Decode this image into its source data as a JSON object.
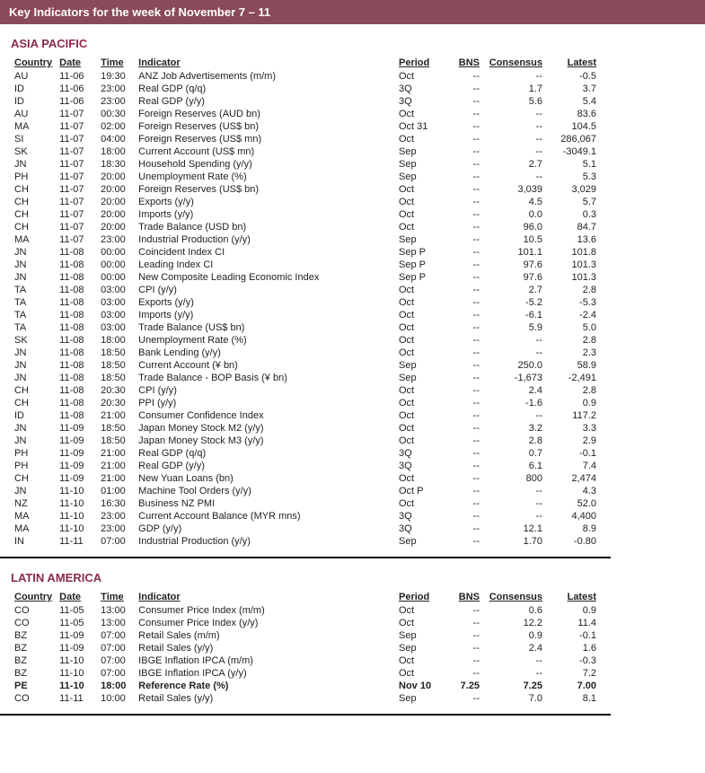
{
  "header": {
    "title": "Key Indicators for the week of November 7 – 11"
  },
  "columns": {
    "country": "Country",
    "date": "Date",
    "time": "Time",
    "indicator": "Indicator",
    "period": "Period",
    "bns": "BNS",
    "consensus": "Consensus",
    "latest": "Latest"
  },
  "sections": [
    {
      "title": "ASIA PACIFIC",
      "rows": [
        {
          "country": "AU",
          "date": "11-06",
          "time": "19:30",
          "indicator": "ANZ Job Advertisements  (m/m)",
          "period": "Oct",
          "bns": "--",
          "consensus": "--",
          "latest": "-0.5"
        },
        {
          "country": "ID",
          "date": "11-06",
          "time": "23:00",
          "indicator": "Real GDP (q/q)",
          "period": "3Q",
          "bns": "--",
          "consensus": "1.7",
          "latest": "3.7"
        },
        {
          "country": "ID",
          "date": "11-06",
          "time": "23:00",
          "indicator": "Real GDP (y/y)",
          "period": "3Q",
          "bns": "--",
          "consensus": "5.6",
          "latest": "5.4"
        },
        {
          "country": "AU",
          "date": "11-07",
          "time": "00:30",
          "indicator": "Foreign Reserves (AUD bn)",
          "period": "Oct",
          "bns": "--",
          "consensus": "--",
          "latest": "83.6"
        },
        {
          "country": "MA",
          "date": "11-07",
          "time": "02:00",
          "indicator": "Foreign Reserves (US$ bn)",
          "period": "Oct 31",
          "bns": "--",
          "consensus": "--",
          "latest": "104.5"
        },
        {
          "country": "SI",
          "date": "11-07",
          "time": "04:00",
          "indicator": "Foreign Reserves (US$ mn)",
          "period": "Oct",
          "bns": "--",
          "consensus": "--",
          "latest": "286,067"
        },
        {
          "country": "SK",
          "date": "11-07",
          "time": "18:00",
          "indicator": "Current Account (US$ mn)",
          "period": "Sep",
          "bns": "--",
          "consensus": "--",
          "latest": "-3049.1"
        },
        {
          "country": "JN",
          "date": "11-07",
          "time": "18:30",
          "indicator": "Household Spending (y/y)",
          "period": "Sep",
          "bns": "--",
          "consensus": "2.7",
          "latest": "5.1"
        },
        {
          "country": "PH",
          "date": "11-07",
          "time": "20:00",
          "indicator": "Unemployment Rate (%)",
          "period": "Sep",
          "bns": "--",
          "consensus": "--",
          "latest": "5.3"
        },
        {
          "country": "CH",
          "date": "11-07",
          "time": "20:00",
          "indicator": "Foreign Reserves (US$ bn)",
          "period": "Oct",
          "bns": "--",
          "consensus": "3,039",
          "latest": "3,029"
        },
        {
          "country": "CH",
          "date": "11-07",
          "time": "20:00",
          "indicator": "Exports (y/y)",
          "period": "Oct",
          "bns": "--",
          "consensus": "4.5",
          "latest": "5.7"
        },
        {
          "country": "CH",
          "date": "11-07",
          "time": "20:00",
          "indicator": "Imports (y/y)",
          "period": "Oct",
          "bns": "--",
          "consensus": "0.0",
          "latest": "0.3"
        },
        {
          "country": "CH",
          "date": "11-07",
          "time": "20:00",
          "indicator": "Trade Balance (USD bn)",
          "period": "Oct",
          "bns": "--",
          "consensus": "96.0",
          "latest": "84.7"
        },
        {
          "country": "MA",
          "date": "11-07",
          "time": "23:00",
          "indicator": "Industrial Production (y/y)",
          "period": "Sep",
          "bns": "--",
          "consensus": "10.5",
          "latest": "13.6"
        },
        {
          "country": "JN",
          "date": "11-08",
          "time": "00:00",
          "indicator": "Coincident Index CI",
          "period": "Sep P",
          "bns": "--",
          "consensus": "101.1",
          "latest": "101.8"
        },
        {
          "country": "JN",
          "date": "11-08",
          "time": "00:00",
          "indicator": "Leading Index CI",
          "period": "Sep P",
          "bns": "--",
          "consensus": "97.6",
          "latest": "101.3"
        },
        {
          "country": "JN",
          "date": "11-08",
          "time": "00:00",
          "indicator": "New Composite Leading Economic Index",
          "period": "Sep P",
          "bns": "--",
          "consensus": "97.6",
          "latest": "101.3"
        },
        {
          "country": "TA",
          "date": "11-08",
          "time": "03:00",
          "indicator": "CPI (y/y)",
          "period": "Oct",
          "bns": "--",
          "consensus": "2.7",
          "latest": "2.8"
        },
        {
          "country": "TA",
          "date": "11-08",
          "time": "03:00",
          "indicator": "Exports (y/y)",
          "period": "Oct",
          "bns": "--",
          "consensus": "-5.2",
          "latest": "-5.3"
        },
        {
          "country": "TA",
          "date": "11-08",
          "time": "03:00",
          "indicator": "Imports (y/y)",
          "period": "Oct",
          "bns": "--",
          "consensus": "-6.1",
          "latest": "-2.4"
        },
        {
          "country": "TA",
          "date": "11-08",
          "time": "03:00",
          "indicator": "Trade Balance (US$ bn)",
          "period": "Oct",
          "bns": "--",
          "consensus": "5.9",
          "latest": "5.0"
        },
        {
          "country": "SK",
          "date": "11-08",
          "time": "18:00",
          "indicator": "Unemployment Rate (%)",
          "period": "Oct",
          "bns": "--",
          "consensus": "--",
          "latest": "2.8"
        },
        {
          "country": "JN",
          "date": "11-08",
          "time": "18:50",
          "indicator": "Bank Lending (y/y)",
          "period": "Oct",
          "bns": "--",
          "consensus": "--",
          "latest": "2.3"
        },
        {
          "country": "JN",
          "date": "11-08",
          "time": "18:50",
          "indicator": "Current Account (¥ bn)",
          "period": "Sep",
          "bns": "--",
          "consensus": "250.0",
          "latest": "58.9"
        },
        {
          "country": "JN",
          "date": "11-08",
          "time": "18:50",
          "indicator": "Trade Balance - BOP Basis (¥ bn)",
          "period": "Sep",
          "bns": "--",
          "consensus": "-1,673",
          "latest": "-2,491"
        },
        {
          "country": "CH",
          "date": "11-08",
          "time": "20:30",
          "indicator": "CPI (y/y)",
          "period": "Oct",
          "bns": "--",
          "consensus": "2.4",
          "latest": "2.8"
        },
        {
          "country": "CH",
          "date": "11-08",
          "time": "20:30",
          "indicator": "PPI (y/y)",
          "period": "Oct",
          "bns": "--",
          "consensus": "-1.6",
          "latest": "0.9"
        },
        {
          "country": "ID",
          "date": "11-08",
          "time": "21:00",
          "indicator": "Consumer Confidence Index",
          "period": "Oct",
          "bns": "--",
          "consensus": "--",
          "latest": "117.2"
        },
        {
          "country": "JN",
          "date": "11-09",
          "time": "18:50",
          "indicator": "Japan Money Stock M2 (y/y)",
          "period": "Oct",
          "bns": "--",
          "consensus": "3.2",
          "latest": "3.3"
        },
        {
          "country": "JN",
          "date": "11-09",
          "time": "18:50",
          "indicator": "Japan Money Stock M3 (y/y)",
          "period": "Oct",
          "bns": "--",
          "consensus": "2.8",
          "latest": "2.9"
        },
        {
          "country": "PH",
          "date": "11-09",
          "time": "21:00",
          "indicator": "Real GDP (q/q)",
          "period": "3Q",
          "bns": "--",
          "consensus": "0.7",
          "latest": "-0.1"
        },
        {
          "country": "PH",
          "date": "11-09",
          "time": "21:00",
          "indicator": "Real GDP (y/y)",
          "period": "3Q",
          "bns": "--",
          "consensus": "6.1",
          "latest": "7.4"
        },
        {
          "country": "CH",
          "date": "11-09",
          "time": "21:00",
          "indicator": "New Yuan Loans (bn)",
          "period": "Oct",
          "bns": "--",
          "consensus": "800",
          "latest": "2,474"
        },
        {
          "country": "JN",
          "date": "11-10",
          "time": "01:00",
          "indicator": "Machine Tool Orders (y/y)",
          "period": "Oct P",
          "bns": "--",
          "consensus": "--",
          "latest": "4.3"
        },
        {
          "country": "NZ",
          "date": "11-10",
          "time": "16:30",
          "indicator": "Business NZ PMI",
          "period": "Oct",
          "bns": "--",
          "consensus": "--",
          "latest": "52.0"
        },
        {
          "country": "MA",
          "date": "11-10",
          "time": "23:00",
          "indicator": "Current Account Balance (MYR mns)",
          "period": "3Q",
          "bns": "--",
          "consensus": "--",
          "latest": "4,400"
        },
        {
          "country": "MA",
          "date": "11-10",
          "time": "23:00",
          "indicator": "GDP (y/y)",
          "period": "3Q",
          "bns": "--",
          "consensus": "12.1",
          "latest": "8.9"
        },
        {
          "country": "IN",
          "date": "11-11",
          "time": "07:00",
          "indicator": "Industrial Production (y/y)",
          "period": "Sep",
          "bns": "--",
          "consensus": "1.70",
          "latest": "-0.80"
        }
      ]
    },
    {
      "title": "LATIN AMERICA",
      "rows": [
        {
          "country": "CO",
          "date": "11-05",
          "time": "13:00",
          "indicator": "Consumer Price Index (m/m)",
          "period": "Oct",
          "bns": "--",
          "consensus": "0.6",
          "latest": "0.9"
        },
        {
          "country": "CO",
          "date": "11-05",
          "time": "13:00",
          "indicator": "Consumer Price Index (y/y)",
          "period": "Oct",
          "bns": "--",
          "consensus": "12.2",
          "latest": "11.4"
        },
        {
          "country": "BZ",
          "date": "11-09",
          "time": "07:00",
          "indicator": "Retail Sales (m/m)",
          "period": "Sep",
          "bns": "--",
          "consensus": "0.9",
          "latest": "-0.1"
        },
        {
          "country": "BZ",
          "date": "11-09",
          "time": "07:00",
          "indicator": "Retail Sales (y/y)",
          "period": "Sep",
          "bns": "--",
          "consensus": "2.4",
          "latest": "1.6"
        },
        {
          "country": "BZ",
          "date": "11-10",
          "time": "07:00",
          "indicator": "IBGE Inflation IPCA (m/m)",
          "period": "Oct",
          "bns": "--",
          "consensus": "--",
          "latest": "-0.3"
        },
        {
          "country": "BZ",
          "date": "11-10",
          "time": "07:00",
          "indicator": "IBGE Inflation IPCA (y/y)",
          "period": "Oct",
          "bns": "--",
          "consensus": "--",
          "latest": "7.2"
        },
        {
          "country": "PE",
          "date": "11-10",
          "time": "18:00",
          "indicator": "Reference Rate (%)",
          "period": "Nov 10",
          "bns": "7.25",
          "consensus": "7.25",
          "latest": "7.00",
          "bold": true
        },
        {
          "country": "CO",
          "date": "11-11",
          "time": "10:00",
          "indicator": "Retail Sales (y/y)",
          "period": "Sep",
          "bns": "--",
          "consensus": "7.0",
          "latest": "8.1"
        }
      ]
    }
  ]
}
